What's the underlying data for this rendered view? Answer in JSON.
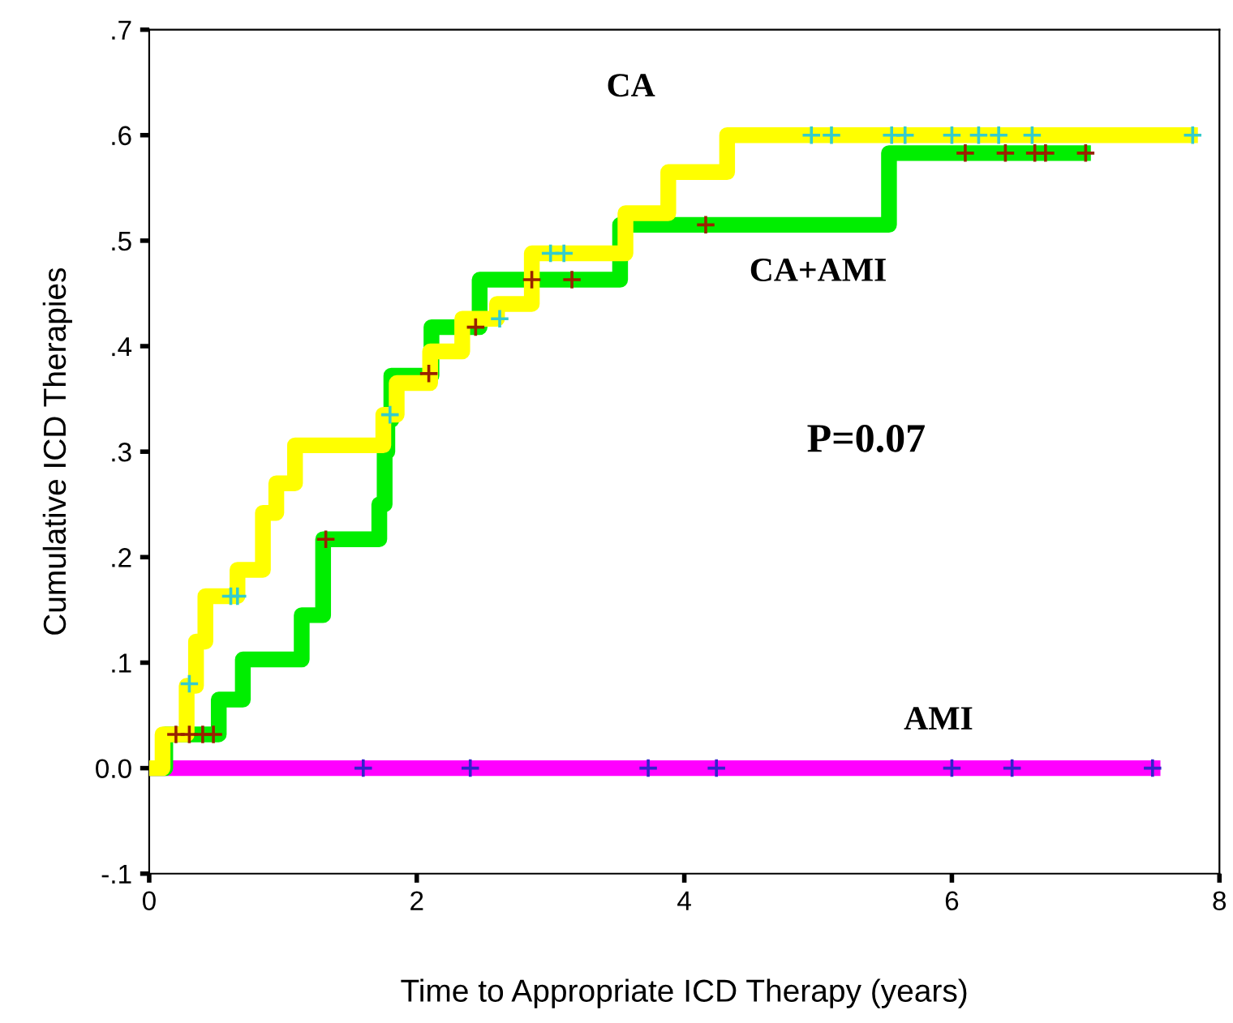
{
  "chart_data": {
    "type": "step",
    "xlabel": "Time to Appropriate ICD Therapy (years)",
    "ylabel": "Cumulative ICD Therapies",
    "xlim": [
      0,
      8
    ],
    "ylim": [
      -0.1,
      0.7
    ],
    "xticks": [
      0,
      2,
      4,
      6,
      8
    ],
    "yticks": [
      {
        "value": -0.1,
        "label": "-.1"
      },
      {
        "value": 0,
        "label": "0.0"
      },
      {
        "value": 0.1,
        "label": ".1"
      },
      {
        "value": 0.2,
        "label": ".2"
      },
      {
        "value": 0.3,
        "label": ".3"
      },
      {
        "value": 0.4,
        "label": ".4"
      },
      {
        "value": 0.5,
        "label": ".5"
      },
      {
        "value": 0.6,
        "label": ".6"
      },
      {
        "value": 0.7,
        "label": ".7"
      }
    ],
    "grid": false,
    "legend": false,
    "annotations": [
      "P=0.07"
    ],
    "series": [
      {
        "name": "CA",
        "color": "#ffff00",
        "x": [
          0,
          0.1,
          0.28,
          0.35,
          0.42,
          0.66,
          0.85,
          0.95,
          1.09,
          1.75,
          1.85,
          2.1,
          2.34,
          2.6,
          2.86,
          3.56,
          3.88,
          4.32,
          7.78
        ],
        "values": [
          0,
          0.032,
          0.078,
          0.12,
          0.163,
          0.188,
          0.242,
          0.27,
          0.306,
          0.335,
          0.365,
          0.395,
          0.426,
          0.44,
          0.488,
          0.526,
          0.565,
          0.6,
          0.6
        ]
      },
      {
        "name": "CA+AMI",
        "color": "#00ee00",
        "x": [
          0,
          0.12,
          0.52,
          0.7,
          1.14,
          1.3,
          1.72,
          1.76,
          1.78,
          1.81,
          2.11,
          2.47,
          3.52,
          5.53,
          6.98
        ],
        "values": [
          0,
          0.032,
          0.065,
          0.103,
          0.145,
          0.217,
          0.25,
          0.3,
          0.33,
          0.372,
          0.418,
          0.463,
          0.515,
          0.583,
          0.583
        ]
      },
      {
        "name": "AMI",
        "color": "#ff00ff",
        "x": [
          0,
          7.5
        ],
        "values": [
          0,
          0
        ]
      },
      {
        "type": "scatter",
        "marker": "cross",
        "color": "#33cccc",
        "x": [
          0.3,
          0.61,
          0.66,
          1.8,
          2.62,
          3.0,
          3.1,
          4.95,
          5.1,
          5.55,
          5.65,
          6.0,
          6.2,
          6.35,
          6.6,
          7.8
        ],
        "values": [
          0.08,
          0.163,
          0.163,
          0.335,
          0.426,
          0.488,
          0.488,
          0.6,
          0.6,
          0.6,
          0.6,
          0.6,
          0.6,
          0.6,
          0.6,
          0.6
        ]
      },
      {
        "type": "scatter",
        "marker": "cross",
        "color": "#992200",
        "x": [
          0.2,
          0.3,
          0.4,
          0.48,
          1.32,
          2.09,
          2.44,
          2.86,
          3.16,
          4.16,
          6.1,
          6.4,
          6.62,
          6.7,
          7.0
        ],
        "values": [
          0.032,
          0.032,
          0.032,
          0.032,
          0.217,
          0.374,
          0.418,
          0.463,
          0.463,
          0.515,
          0.583,
          0.583,
          0.583,
          0.583,
          0.583
        ]
      },
      {
        "type": "scatter",
        "marker": "cross",
        "color": "#3322cc",
        "x": [
          1.6,
          2.4,
          3.73,
          4.24,
          6.0,
          6.45,
          7.5
        ],
        "values": [
          0,
          0,
          0,
          0,
          0,
          0,
          0
        ]
      }
    ]
  }
}
